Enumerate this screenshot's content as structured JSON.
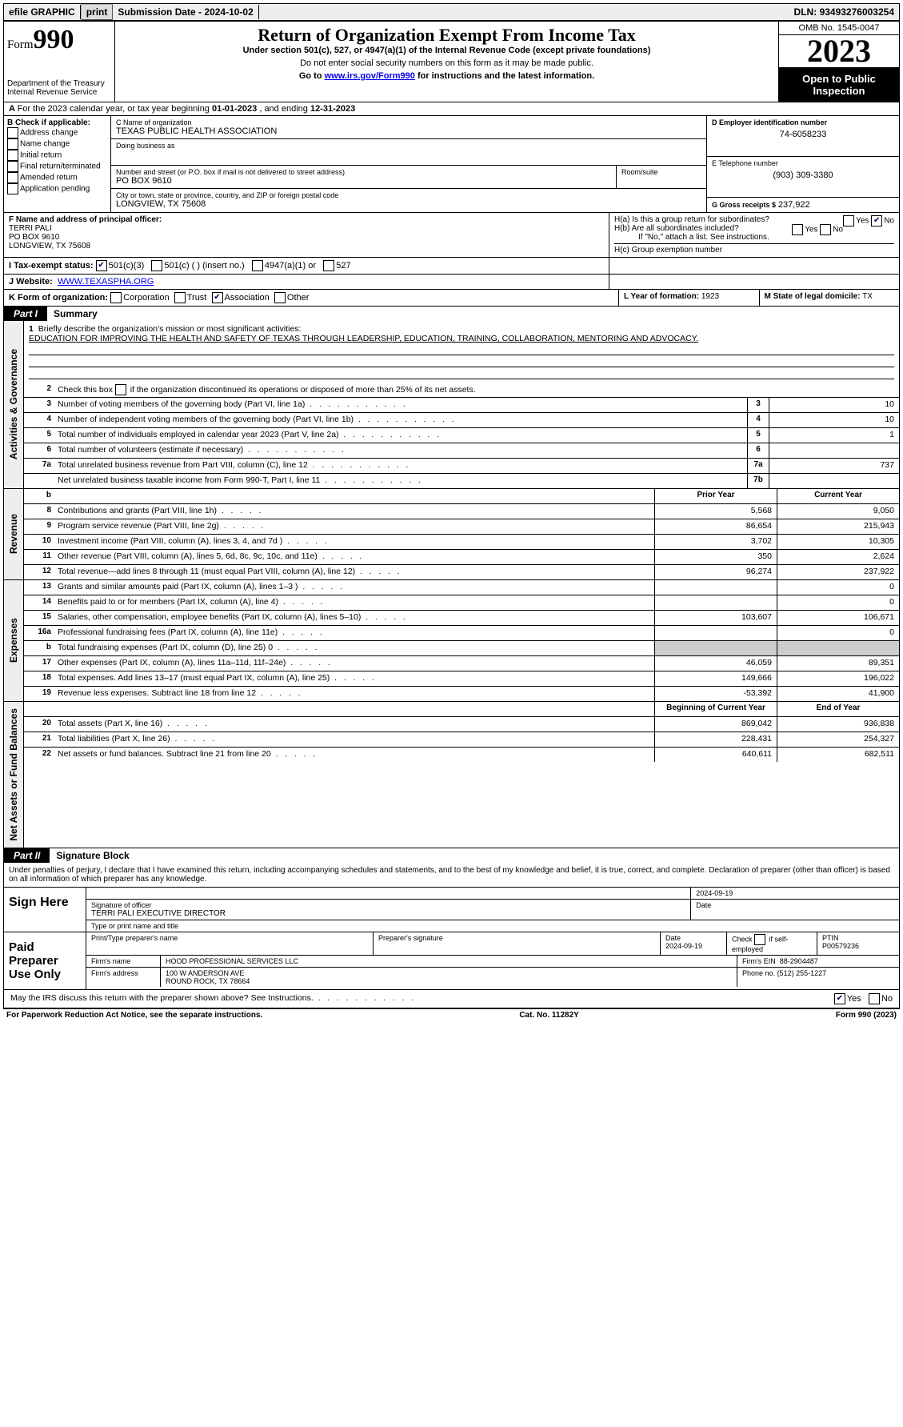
{
  "topbar": {
    "efile": "efile GRAPHIC",
    "print": "print",
    "sub_lbl": "Submission Date -",
    "sub_date": "2024-10-02",
    "dln_lbl": "DLN:",
    "dln": "93493276003254"
  },
  "header": {
    "form_word": "Form",
    "form_num": "990",
    "dept1": "Department of the Treasury",
    "dept2": "Internal Revenue Service",
    "title": "Return of Organization Exempt From Income Tax",
    "sub1": "Under section 501(c), 527, or 4947(a)(1) of the Internal Revenue Code (except private foundations)",
    "sub2": "Do not enter social security numbers on this form as it may be made public.",
    "sub3a": "Go to ",
    "sub3_link": "www.irs.gov/Form990",
    "sub3b": " for instructions and the latest information.",
    "omb": "OMB No. 1545-0047",
    "year": "2023",
    "open": "Open to Public Inspection"
  },
  "row_a": {
    "prefix": "A",
    "txt1": "For the 2023 calendar year, or tax year beginning ",
    "d1": "01-01-2023",
    "txt2": "  , and ending ",
    "d2": "12-31-2023"
  },
  "box_b": {
    "hdr": "B Check if applicable:",
    "items": [
      "Address change",
      "Name change",
      "Initial return",
      "Final return/terminated",
      "Amended return",
      "Application pending"
    ]
  },
  "box_c": {
    "lbl_name": "C Name of organization",
    "org": "TEXAS PUBLIC HEALTH ASSOCIATION",
    "dba_lbl": "Doing business as",
    "dba": "",
    "addr_lbl": "Number and street (or P.O. box if mail is not delivered to street address)",
    "room_lbl": "Room/suite",
    "addr": "PO BOX 9610",
    "city_lbl": "City or town, state or province, country, and ZIP or foreign postal code",
    "city": "LONGVIEW, TX  75608"
  },
  "box_d": {
    "lbl": "D Employer identification number",
    "val": "74-6058233"
  },
  "box_e": {
    "lbl": "E Telephone number",
    "val": "(903) 309-3380"
  },
  "box_g": {
    "lbl": "G Gross receipts $",
    "val": "237,922"
  },
  "box_f": {
    "lbl": "F  Name and address of principal officer:",
    "l1": "TERRI PALI",
    "l2": "PO BOX 9610",
    "l3": "LONGVIEW, TX  75608"
  },
  "box_h": {
    "a_lbl": "H(a)  Is this a group return for subordinates?",
    "b_lbl": "H(b)  Are all subordinates included?",
    "b_note": "If \"No,\" attach a list. See instructions.",
    "c_lbl": "H(c)  Group exemption number ",
    "yes": "Yes",
    "no": "No"
  },
  "row_i": {
    "lbl": "I   Tax-exempt status:",
    "o1": "501(c)(3)",
    "o2": "501(c) (  ) (insert no.)",
    "o3": "4947(a)(1) or",
    "o4": "527"
  },
  "row_j": {
    "lbl": "J   Website:",
    "val": "WWW.TEXASPHA.ORG"
  },
  "row_k": {
    "lbl": "K Form of organization:",
    "o1": "Corporation",
    "o2": "Trust",
    "o3": "Association",
    "o4": "Other"
  },
  "row_l": {
    "lbl": "L Year of formation:",
    "val": "1923"
  },
  "row_m": {
    "lbl": "M State of legal domicile:",
    "val": "TX"
  },
  "part1": {
    "num": "Part I",
    "title": "Summary"
  },
  "summary": {
    "l1_lbl": "Briefly describe the organization's mission or most significant activities:",
    "l1_txt": "EDUCATION FOR IMPROVING THE HEALTH AND SAFETY OF TEXAS THROUGH LEADERSHIP, EDUCATION, TRAINING, COLLABORATION, MENTORING AND ADVOCACY.",
    "l2": "Check this box      if the organization discontinued its operations or disposed of more than 25% of its net assets.",
    "rows_single": [
      {
        "n": "3",
        "t": "Number of voting members of the governing body (Part VI, line 1a)",
        "b": "3",
        "v": "10"
      },
      {
        "n": "4",
        "t": "Number of independent voting members of the governing body (Part VI, line 1b)",
        "b": "4",
        "v": "10"
      },
      {
        "n": "5",
        "t": "Total number of individuals employed in calendar year 2023 (Part V, line 2a)",
        "b": "5",
        "v": "1"
      },
      {
        "n": "6",
        "t": "Total number of volunteers (estimate if necessary)",
        "b": "6",
        "v": ""
      },
      {
        "n": "7a",
        "t": "Total unrelated business revenue from Part VIII, column (C), line 12",
        "b": "7a",
        "v": "737"
      },
      {
        "n": "",
        "t": "Net unrelated business taxable income from Form 990-T, Part I, line 11",
        "b": "7b",
        "v": ""
      }
    ],
    "prior_hdr": "Prior Year",
    "curr_hdr": "Current Year",
    "revenue": [
      {
        "n": "8",
        "t": "Contributions and grants (Part VIII, line 1h)",
        "p": "5,568",
        "c": "9,050"
      },
      {
        "n": "9",
        "t": "Program service revenue (Part VIII, line 2g)",
        "p": "86,654",
        "c": "215,943"
      },
      {
        "n": "10",
        "t": "Investment income (Part VIII, column (A), lines 3, 4, and 7d )",
        "p": "3,702",
        "c": "10,305"
      },
      {
        "n": "11",
        "t": "Other revenue (Part VIII, column (A), lines 5, 6d, 8c, 9c, 10c, and 11e)",
        "p": "350",
        "c": "2,624"
      },
      {
        "n": "12",
        "t": "Total revenue—add lines 8 through 11 (must equal Part VIII, column (A), line 12)",
        "p": "96,274",
        "c": "237,922"
      }
    ],
    "expenses": [
      {
        "n": "13",
        "t": "Grants and similar amounts paid (Part IX, column (A), lines 1–3 )",
        "p": "",
        "c": "0"
      },
      {
        "n": "14",
        "t": "Benefits paid to or for members (Part IX, column (A), line 4)",
        "p": "",
        "c": "0"
      },
      {
        "n": "15",
        "t": "Salaries, other compensation, employee benefits (Part IX, column (A), lines 5–10)",
        "p": "103,607",
        "c": "106,671"
      },
      {
        "n": "16a",
        "t": "Professional fundraising fees (Part IX, column (A), line 11e)",
        "p": "",
        "c": "0"
      },
      {
        "n": "b",
        "t": "Total fundraising expenses (Part IX, column (D), line 25) 0",
        "p": "GREY",
        "c": "GREY"
      },
      {
        "n": "17",
        "t": "Other expenses (Part IX, column (A), lines 11a–11d, 11f–24e)",
        "p": "46,059",
        "c": "89,351"
      },
      {
        "n": "18",
        "t": "Total expenses. Add lines 13–17 (must equal Part IX, column (A), line 25)",
        "p": "149,666",
        "c": "196,022"
      },
      {
        "n": "19",
        "t": "Revenue less expenses. Subtract line 18 from line 12",
        "p": "-53,392",
        "c": "41,900"
      }
    ],
    "beg_hdr": "Beginning of Current Year",
    "end_hdr": "End of Year",
    "netassets": [
      {
        "n": "20",
        "t": "Total assets (Part X, line 16)",
        "p": "869,042",
        "c": "936,838"
      },
      {
        "n": "21",
        "t": "Total liabilities (Part X, line 26)",
        "p": "228,431",
        "c": "254,327"
      },
      {
        "n": "22",
        "t": "Net assets or fund balances. Subtract line 21 from line 20",
        "p": "640,611",
        "c": "682,511"
      }
    ],
    "vtab1": "Activities & Governance",
    "vtab2": "Revenue",
    "vtab3": "Expenses",
    "vtab4": "Net Assets or Fund Balances"
  },
  "part2": {
    "num": "Part II",
    "title": "Signature Block"
  },
  "sig": {
    "decl": "Under penalties of perjury, I declare that I have examined this return, including accompanying schedules and statements, and to the best of my knowledge and belief, it is true, correct, and complete. Declaration of preparer (other than officer) is based on all information of which preparer has any knowledge.",
    "sign_here": "Sign Here",
    "sig_date_top": "2024-09-19",
    "sig_of_officer": "Signature of officer",
    "officer_name": "TERRI PALI  EXECUTIVE DIRECTOR",
    "type_name": "Type or print name and title",
    "date_lbl": "Date",
    "paid": "Paid Preparer Use Only",
    "prep_name_lbl": "Print/Type preparer's name",
    "prep_sig_lbl": "Preparer's signature",
    "prep_date": "2024-09-19",
    "check_self": "Check       if self-employed",
    "ptin_lbl": "PTIN",
    "ptin": "P00579236",
    "firm_name_lbl": "Firm's name",
    "firm_name": "HOOD PROFESSIONAL SERVICES LLC",
    "firm_ein_lbl": "Firm's EIN",
    "firm_ein": "88-2904487",
    "firm_addr_lbl": "Firm's address",
    "firm_addr1": "100 W ANDERSON AVE",
    "firm_addr2": "ROUND ROCK, TX  78664",
    "phone_lbl": "Phone no.",
    "phone": "(512) 255-1227",
    "discuss": "May the IRS discuss this return with the preparer shown above? See Instructions.",
    "yes": "Yes",
    "no": "No"
  },
  "footer": {
    "l": "For Paperwork Reduction Act Notice, see the separate instructions.",
    "m": "Cat. No. 11282Y",
    "r": "Form 990 (2023)"
  }
}
